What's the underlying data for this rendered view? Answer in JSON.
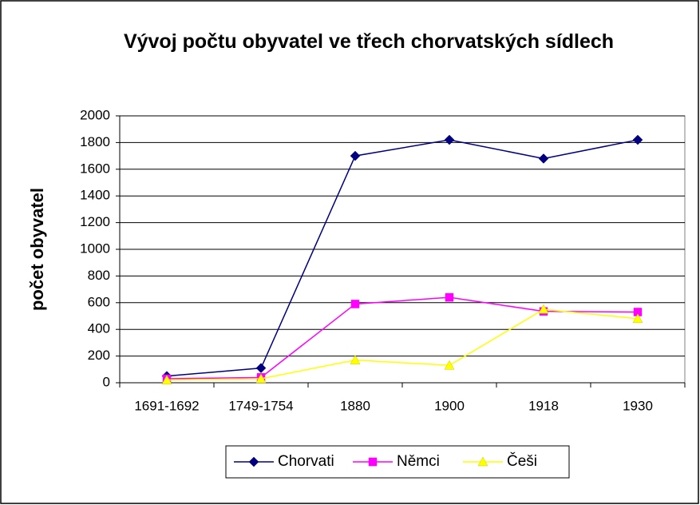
{
  "chart_data": {
    "type": "line",
    "title": "Vývoj počtu obyvatel ve třech chorvatských sídlech",
    "y_label": "počet obyvatel",
    "categories": [
      "1691-1692",
      "1749-1754",
      "1880",
      "1900",
      "1918",
      "1930"
    ],
    "series": [
      {
        "name": "Chorvati",
        "color": "#000080",
        "marker": "diamond",
        "values": [
          50,
          110,
          1700,
          1820,
          1680,
          1820
        ]
      },
      {
        "name": "Němci",
        "color": "#ff00ff",
        "marker": "square",
        "values": [
          30,
          40,
          590,
          640,
          535,
          530
        ]
      },
      {
        "name": "Češi",
        "color": "#ffff00",
        "marker": "triangle",
        "values": [
          20,
          30,
          170,
          130,
          550,
          480
        ]
      }
    ],
    "ylim": [
      0,
      2000
    ],
    "yticks": [
      0,
      200,
      400,
      600,
      800,
      1000,
      1200,
      1400,
      1600,
      1800,
      2000
    ],
    "grid": true,
    "legend": "bottom"
  }
}
